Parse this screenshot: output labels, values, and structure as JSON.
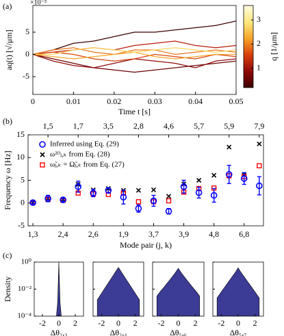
{
  "chart_data": [
    {
      "type": "line",
      "panel_label": "(a)",
      "xlabel": "Time t [s]",
      "ylabel": "aq(t) [√/μm]",
      "multiplier": "×10⁻³",
      "x": [
        0,
        0.005,
        0.01,
        0.015,
        0.02,
        0.025,
        0.03,
        0.035,
        0.04,
        0.045,
        0.05
      ],
      "xlim": [
        0,
        0.05
      ],
      "xticks": [
        0,
        0.01,
        0.02,
        0.03,
        0.04,
        0.05
      ],
      "ylim": [
        -9,
        11
      ],
      "yticks": [
        -5,
        0,
        5
      ],
      "series": [
        {
          "color": "#3d0000",
          "values": [
            0,
            1,
            2.5,
            3,
            4,
            5,
            5,
            5.5,
            6,
            6.5,
            7.5
          ]
        },
        {
          "color": "#6b0000",
          "values": [
            0,
            -1,
            -2,
            -3,
            -3.5,
            -4,
            -3.5,
            -3,
            -2.5,
            -2,
            -1.5
          ]
        },
        {
          "color": "#8f0a0a",
          "values": [
            0,
            -1.5,
            -2.5,
            -3,
            -2,
            -1,
            -1.5,
            -2,
            -3,
            -1.5,
            -1
          ]
        },
        {
          "color": "#b81a0a",
          "values": [
            0,
            0.5,
            1,
            1.5,
            1,
            2,
            2.5,
            3,
            2,
            1.5,
            2
          ]
        },
        {
          "color": "#d8400c",
          "values": [
            0,
            0.5,
            0,
            -1,
            -1.5,
            -1,
            0,
            -0.5,
            -1,
            0,
            -0.5
          ]
        },
        {
          "color": "#ec7418",
          "values": [
            0,
            1,
            1.5,
            0.5,
            0,
            1,
            1,
            0,
            0.5,
            1,
            0.5
          ]
        },
        {
          "color": "#f7a528",
          "values": [
            0,
            -0.5,
            -1,
            -0.5,
            0,
            0.5,
            -0.5,
            -1,
            -0.5,
            0,
            0
          ]
        },
        {
          "color": "#fcd35a",
          "values": [
            0,
            0,
            1,
            1.5,
            1,
            0.5,
            1,
            1.5,
            1,
            0.5,
            1
          ]
        }
      ],
      "colorbar": {
        "label": "q [1/μm]",
        "lim": [
          0.2,
          3.6
        ],
        "ticks": [
          1,
          2,
          3
        ],
        "colors": [
          "#3d0000",
          "#8f0a0a",
          "#d8400c",
          "#f7a528",
          "#fde87e",
          "#fffbe0"
        ]
      }
    },
    {
      "type": "scatter",
      "panel_label": "(b)",
      "xlabel": "Mode pair (j, k)",
      "ylabel": "Frequency ω [Hz]",
      "categories": [
        "1,3",
        "1,5",
        "2,4",
        "1,7",
        "2,6",
        "3,5",
        "1,9",
        "2,8",
        "3,7",
        "4,6",
        "3,9",
        "5,7",
        "4,8",
        "5,9",
        "6,8",
        "7,9"
      ],
      "ylim": [
        -5,
        15
      ],
      "yticks": [
        -5,
        0,
        5,
        10,
        15
      ],
      "series": [
        {
          "name": "Inferred using Eq. (29)",
          "color": "#0000ff",
          "marker": "circle",
          "values": [
            0.1,
            1.0,
            0.7,
            3.6,
            2.2,
            2.8,
            1.3,
            -1.2,
            0.5,
            -1.8,
            3.6,
            2.3,
            1.7,
            6.3,
            5.4,
            3.8
          ],
          "errors": [
            0.3,
            0.7,
            0.4,
            1.2,
            0.8,
            0.6,
            1.5,
            0.8,
            1.2,
            0.6,
            1.4,
            1.2,
            1.5,
            2.0,
            1.3,
            2.0
          ]
        },
        {
          "name": "ω²ᴰⱼ,ₖ from Eq. (28)",
          "color": "#000000",
          "marker": "x",
          "values": [
            0.1,
            1.0,
            0.8,
            4.1,
            2.9,
            3.2,
            2.8,
            2.8,
            2.9,
            1.5,
            4.2,
            5.0,
            6.1,
            12.3,
            6.2,
            13.0
          ]
        },
        {
          "name": "ω̃ⱼ,ₖ = Ω̃ⱼ,ₖ from Eq. (27)",
          "color": "#ff0000",
          "marker": "square",
          "values": [
            0.1,
            0.8,
            0.6,
            2.2,
            2.0,
            1.9,
            2.2,
            0.3,
            0.3,
            0.5,
            2.4,
            3.2,
            3.3,
            6.0,
            5.8,
            8.2
          ]
        }
      ]
    },
    {
      "type": "density",
      "panel_label": "(c)",
      "ylabel": "Density",
      "yscale": "log",
      "color": "#3c3c96",
      "ylim": [
        0.0001,
        1
      ],
      "yticks": [
        {
          "value": 1,
          "label": "10⁰"
        },
        {
          "value": 0.01,
          "label": "10⁻²"
        },
        {
          "value": 0.0001,
          "label": "10⁻⁴"
        }
      ],
      "xlim": [
        -3,
        3
      ],
      "xticks": [
        -2,
        0,
        2
      ],
      "subplots": [
        {
          "xlabel": "Δθ₂,₃",
          "x": [
            -0.3,
            -0.15,
            -0.05,
            0,
            0.05,
            0.15,
            0.3
          ],
          "values": [
            0.0001,
            0.001,
            0.1,
            1,
            0.1,
            0.001,
            0.0001
          ]
        },
        {
          "xlabel": "Δθ₂,₄",
          "x": [
            -2.5,
            -2.25,
            -2,
            -1.75,
            -1.5,
            -1.25,
            -1,
            -0.75,
            -0.5,
            -0.25,
            0,
            0.25,
            0.5,
            0.75,
            1,
            1.25,
            1.5,
            1.75,
            2,
            2.25,
            2.5
          ],
          "values": [
            0.0016,
            0.0028,
            0.0049,
            0.0085,
            0.0147,
            0.0256,
            0.0443,
            0.077,
            0.133,
            0.231,
            0.4,
            0.231,
            0.133,
            0.077,
            0.0443,
            0.0256,
            0.0147,
            0.0085,
            0.0049,
            0.0028,
            0.0016
          ]
        },
        {
          "xlabel": "Δθ₅,₆",
          "x": [
            -2.5,
            -2.25,
            -2,
            -1.75,
            -1.5,
            -1.25,
            -1,
            -0.75,
            -0.5,
            -0.25,
            0,
            0.25,
            0.5,
            0.75,
            1,
            1.25,
            1.5,
            1.75,
            2,
            2.25,
            2.5
          ],
          "values": [
            0.003,
            0.005,
            0.008,
            0.012,
            0.019,
            0.03,
            0.047,
            0.075,
            0.12,
            0.2,
            0.35,
            0.2,
            0.12,
            0.075,
            0.047,
            0.03,
            0.019,
            0.012,
            0.008,
            0.005,
            0.003
          ]
        },
        {
          "xlabel": "Δθ₅,₇",
          "x": [
            -2.5,
            -2.25,
            -2,
            -1.75,
            -1.5,
            -1.25,
            -1,
            -0.75,
            -0.5,
            -0.25,
            0,
            0.25,
            0.5,
            0.75,
            1,
            1.25,
            1.5,
            1.75,
            2,
            2.25,
            2.5
          ],
          "values": [
            0.0022,
            0.0037,
            0.0062,
            0.0102,
            0.017,
            0.028,
            0.046,
            0.076,
            0.125,
            0.21,
            0.38,
            0.21,
            0.125,
            0.076,
            0.046,
            0.028,
            0.017,
            0.0102,
            0.0062,
            0.0037,
            0.0022
          ]
        }
      ]
    }
  ]
}
